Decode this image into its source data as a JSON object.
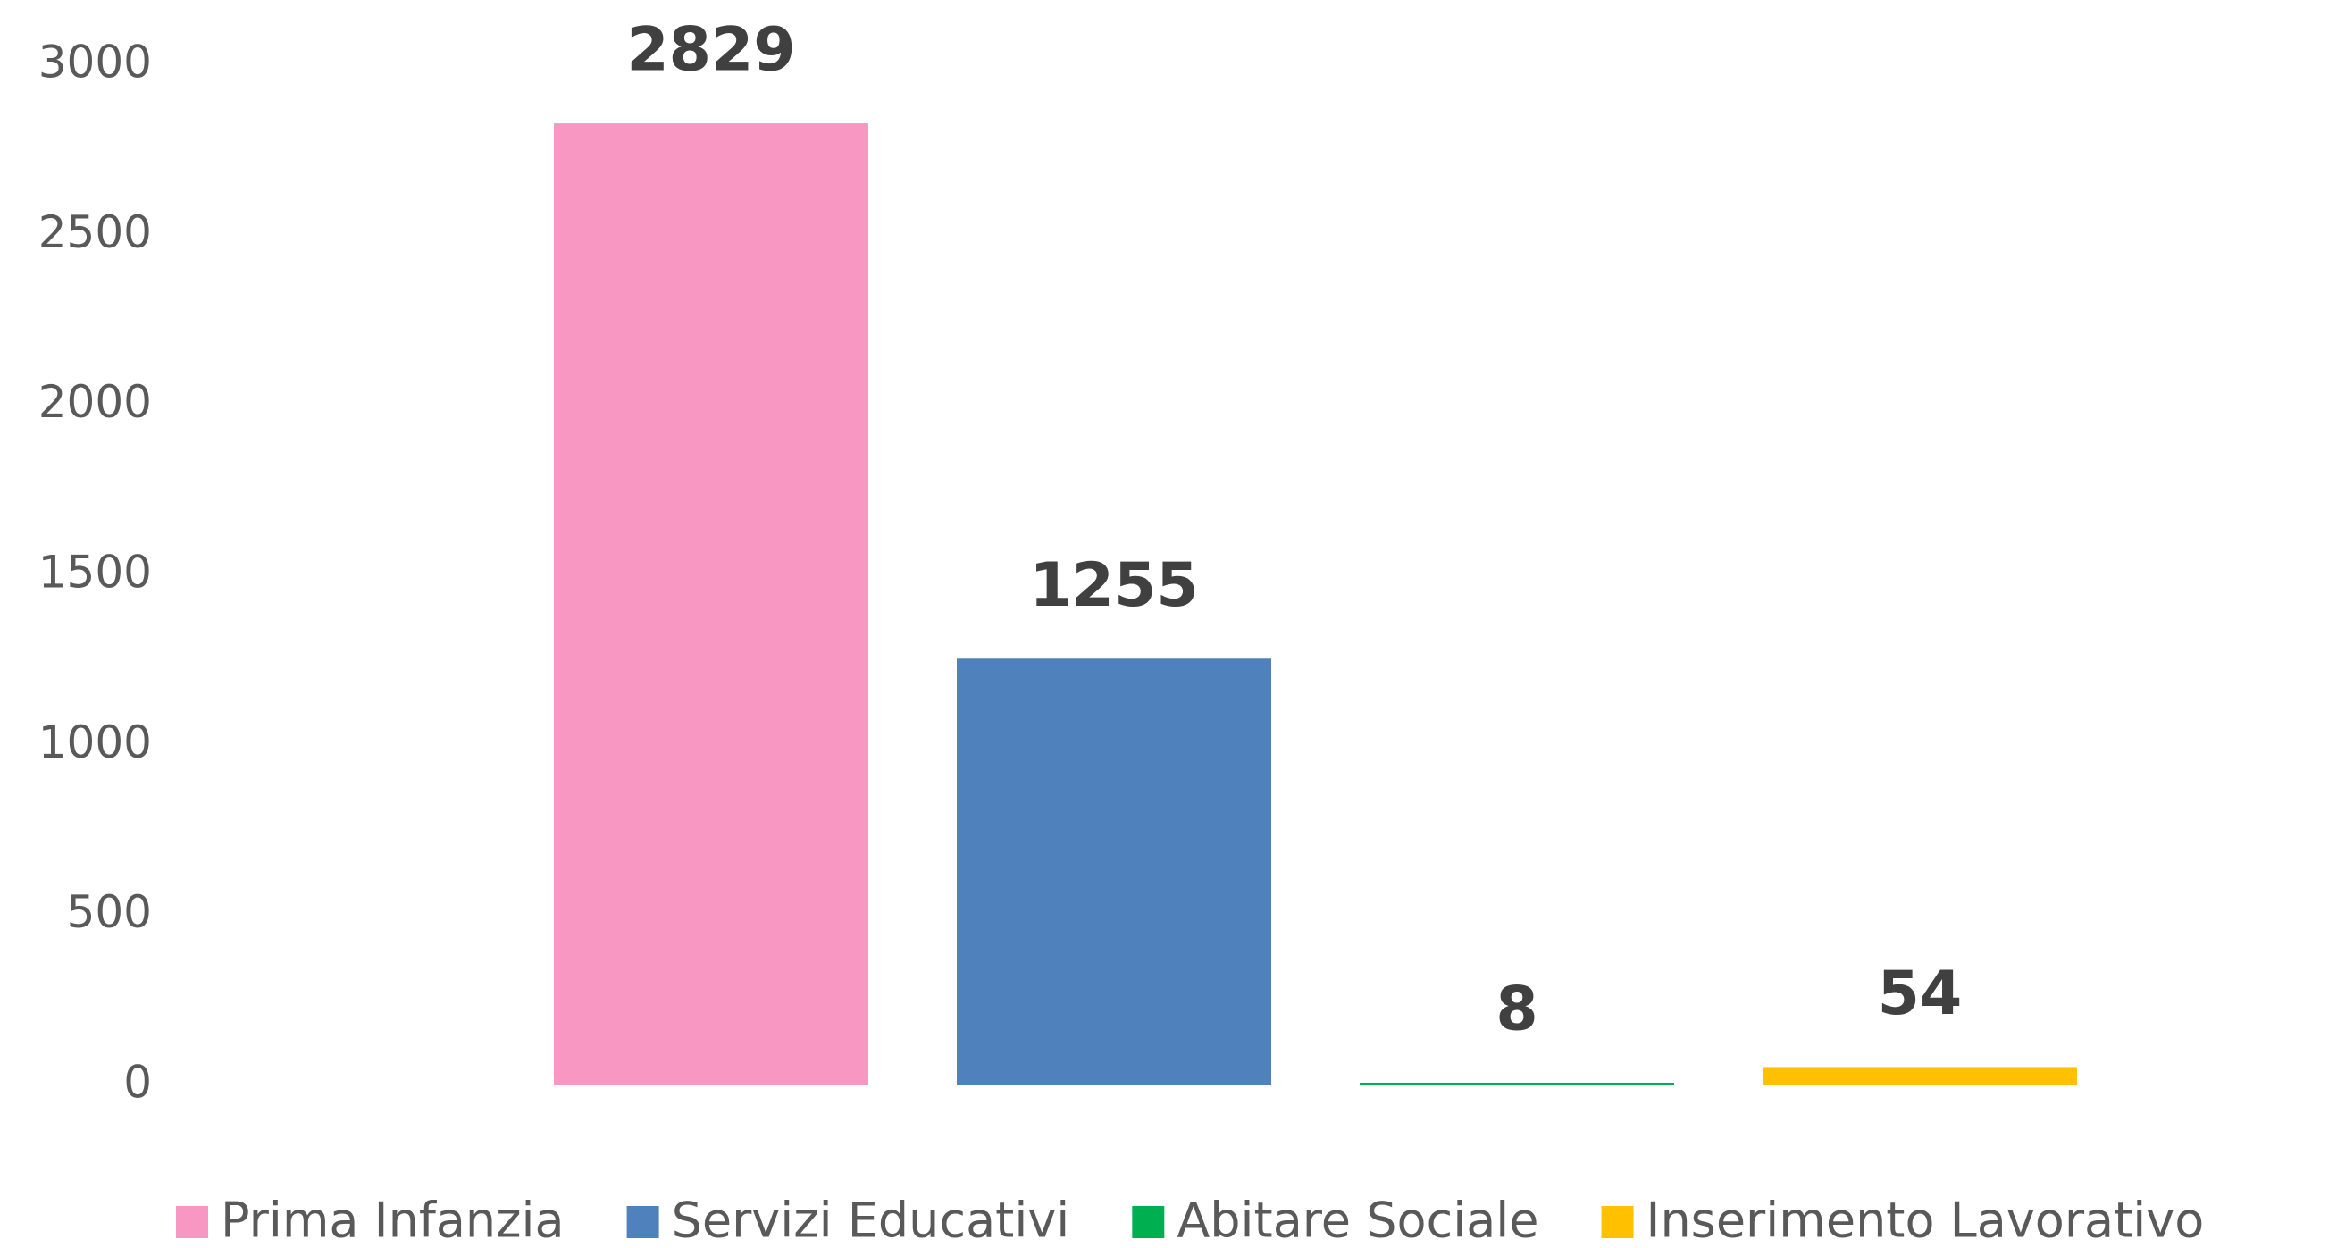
{
  "chart_data": {
    "type": "bar",
    "categories": [
      null
    ],
    "series": [
      {
        "name": "Prima Infanzia",
        "color": "#f797c2",
        "values": [
          2829
        ]
      },
      {
        "name": "Servizi Educativi",
        "color": "#4f81bd",
        "values": [
          1255
        ]
      },
      {
        "name": "Abitare Sociale",
        "color": "#00b050",
        "values": [
          8
        ]
      },
      {
        "name": "Inserimento Lavorativo",
        "color": "#ffc000",
        "values": [
          54
        ]
      }
    ],
    "ylim": [
      0,
      3000
    ],
    "yticks": [
      0,
      500,
      1000,
      1500,
      2000,
      2500,
      3000
    ],
    "grid": false,
    "legend": "bottom"
  }
}
